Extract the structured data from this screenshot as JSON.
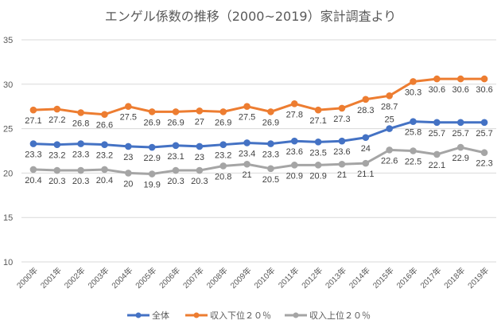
{
  "chart_data": {
    "type": "line",
    "title": "エンゲル係数の推移（2000~2019）家計調査より",
    "xlabel": "",
    "ylabel": "",
    "ylim": [
      10,
      35
    ],
    "yticks": [
      "10",
      "15",
      "20",
      "25",
      "30",
      "35"
    ],
    "grid": true,
    "legend_position": "bottom",
    "categories": [
      "2000年",
      "2001年",
      "2002年",
      "2003年",
      "2004年",
      "2005年",
      "2006年",
      "2007年",
      "2008年",
      "2009年",
      "2010年",
      "2011年",
      "2012年",
      "2013年",
      "2014年",
      "2015年",
      "2016年",
      "2017年",
      "2018年",
      "2019年"
    ],
    "series": [
      {
        "name": "全体",
        "color": "#4472C4",
        "values": [
          23.3,
          23.2,
          23.3,
          23.2,
          23,
          22.9,
          23.1,
          23,
          23.2,
          23.4,
          23.3,
          23.6,
          23.5,
          23.6,
          24,
          25,
          25.8,
          25.7,
          25.7,
          25.7
        ],
        "labels": [
          "23.3",
          "23.2",
          "23.3",
          "23.2",
          "23",
          "22.9",
          "23.1",
          "23",
          "23.2",
          "23.4",
          "23.3",
          "23.6",
          "23.5",
          "23.6",
          "24",
          "25",
          "25.8",
          "25.7",
          "25.7",
          "25.7"
        ]
      },
      {
        "name": "収入下位２０％",
        "color": "#ED7D31",
        "values": [
          27.1,
          27.2,
          26.8,
          26.6,
          27.5,
          26.9,
          26.9,
          27,
          26.9,
          27.5,
          26.9,
          27.8,
          27.1,
          27.3,
          28.3,
          28.7,
          30.3,
          30.6,
          30.6,
          30.6
        ],
        "labels": [
          "27.1",
          "27.2",
          "26.8",
          "26.6",
          "27.5",
          "26.9",
          "26.9",
          "27",
          "26.9",
          "27.5",
          "26.9",
          "27.8",
          "27.1",
          "27.3",
          "28.3",
          "28.7",
          "30.3",
          "30.6",
          "30.6",
          "30.6"
        ]
      },
      {
        "name": "収入上位２０％",
        "color": "#A5A5A5",
        "values": [
          20.4,
          20.3,
          20.3,
          20.4,
          20,
          19.9,
          20.3,
          20.3,
          20.8,
          21,
          20.5,
          20.9,
          20.9,
          21,
          21.1,
          22.6,
          22.5,
          22.1,
          22.9,
          22.3
        ],
        "labels": [
          "20.4",
          "20.3",
          "20.3",
          "20.4",
          "20",
          "19.9",
          "20.3",
          "20.3",
          "20.8",
          "21",
          "20.5",
          "20.9",
          "20.9",
          "21",
          "21.1",
          "22.6",
          "22.5",
          "22.1",
          "22.9",
          "22.3"
        ]
      }
    ]
  }
}
